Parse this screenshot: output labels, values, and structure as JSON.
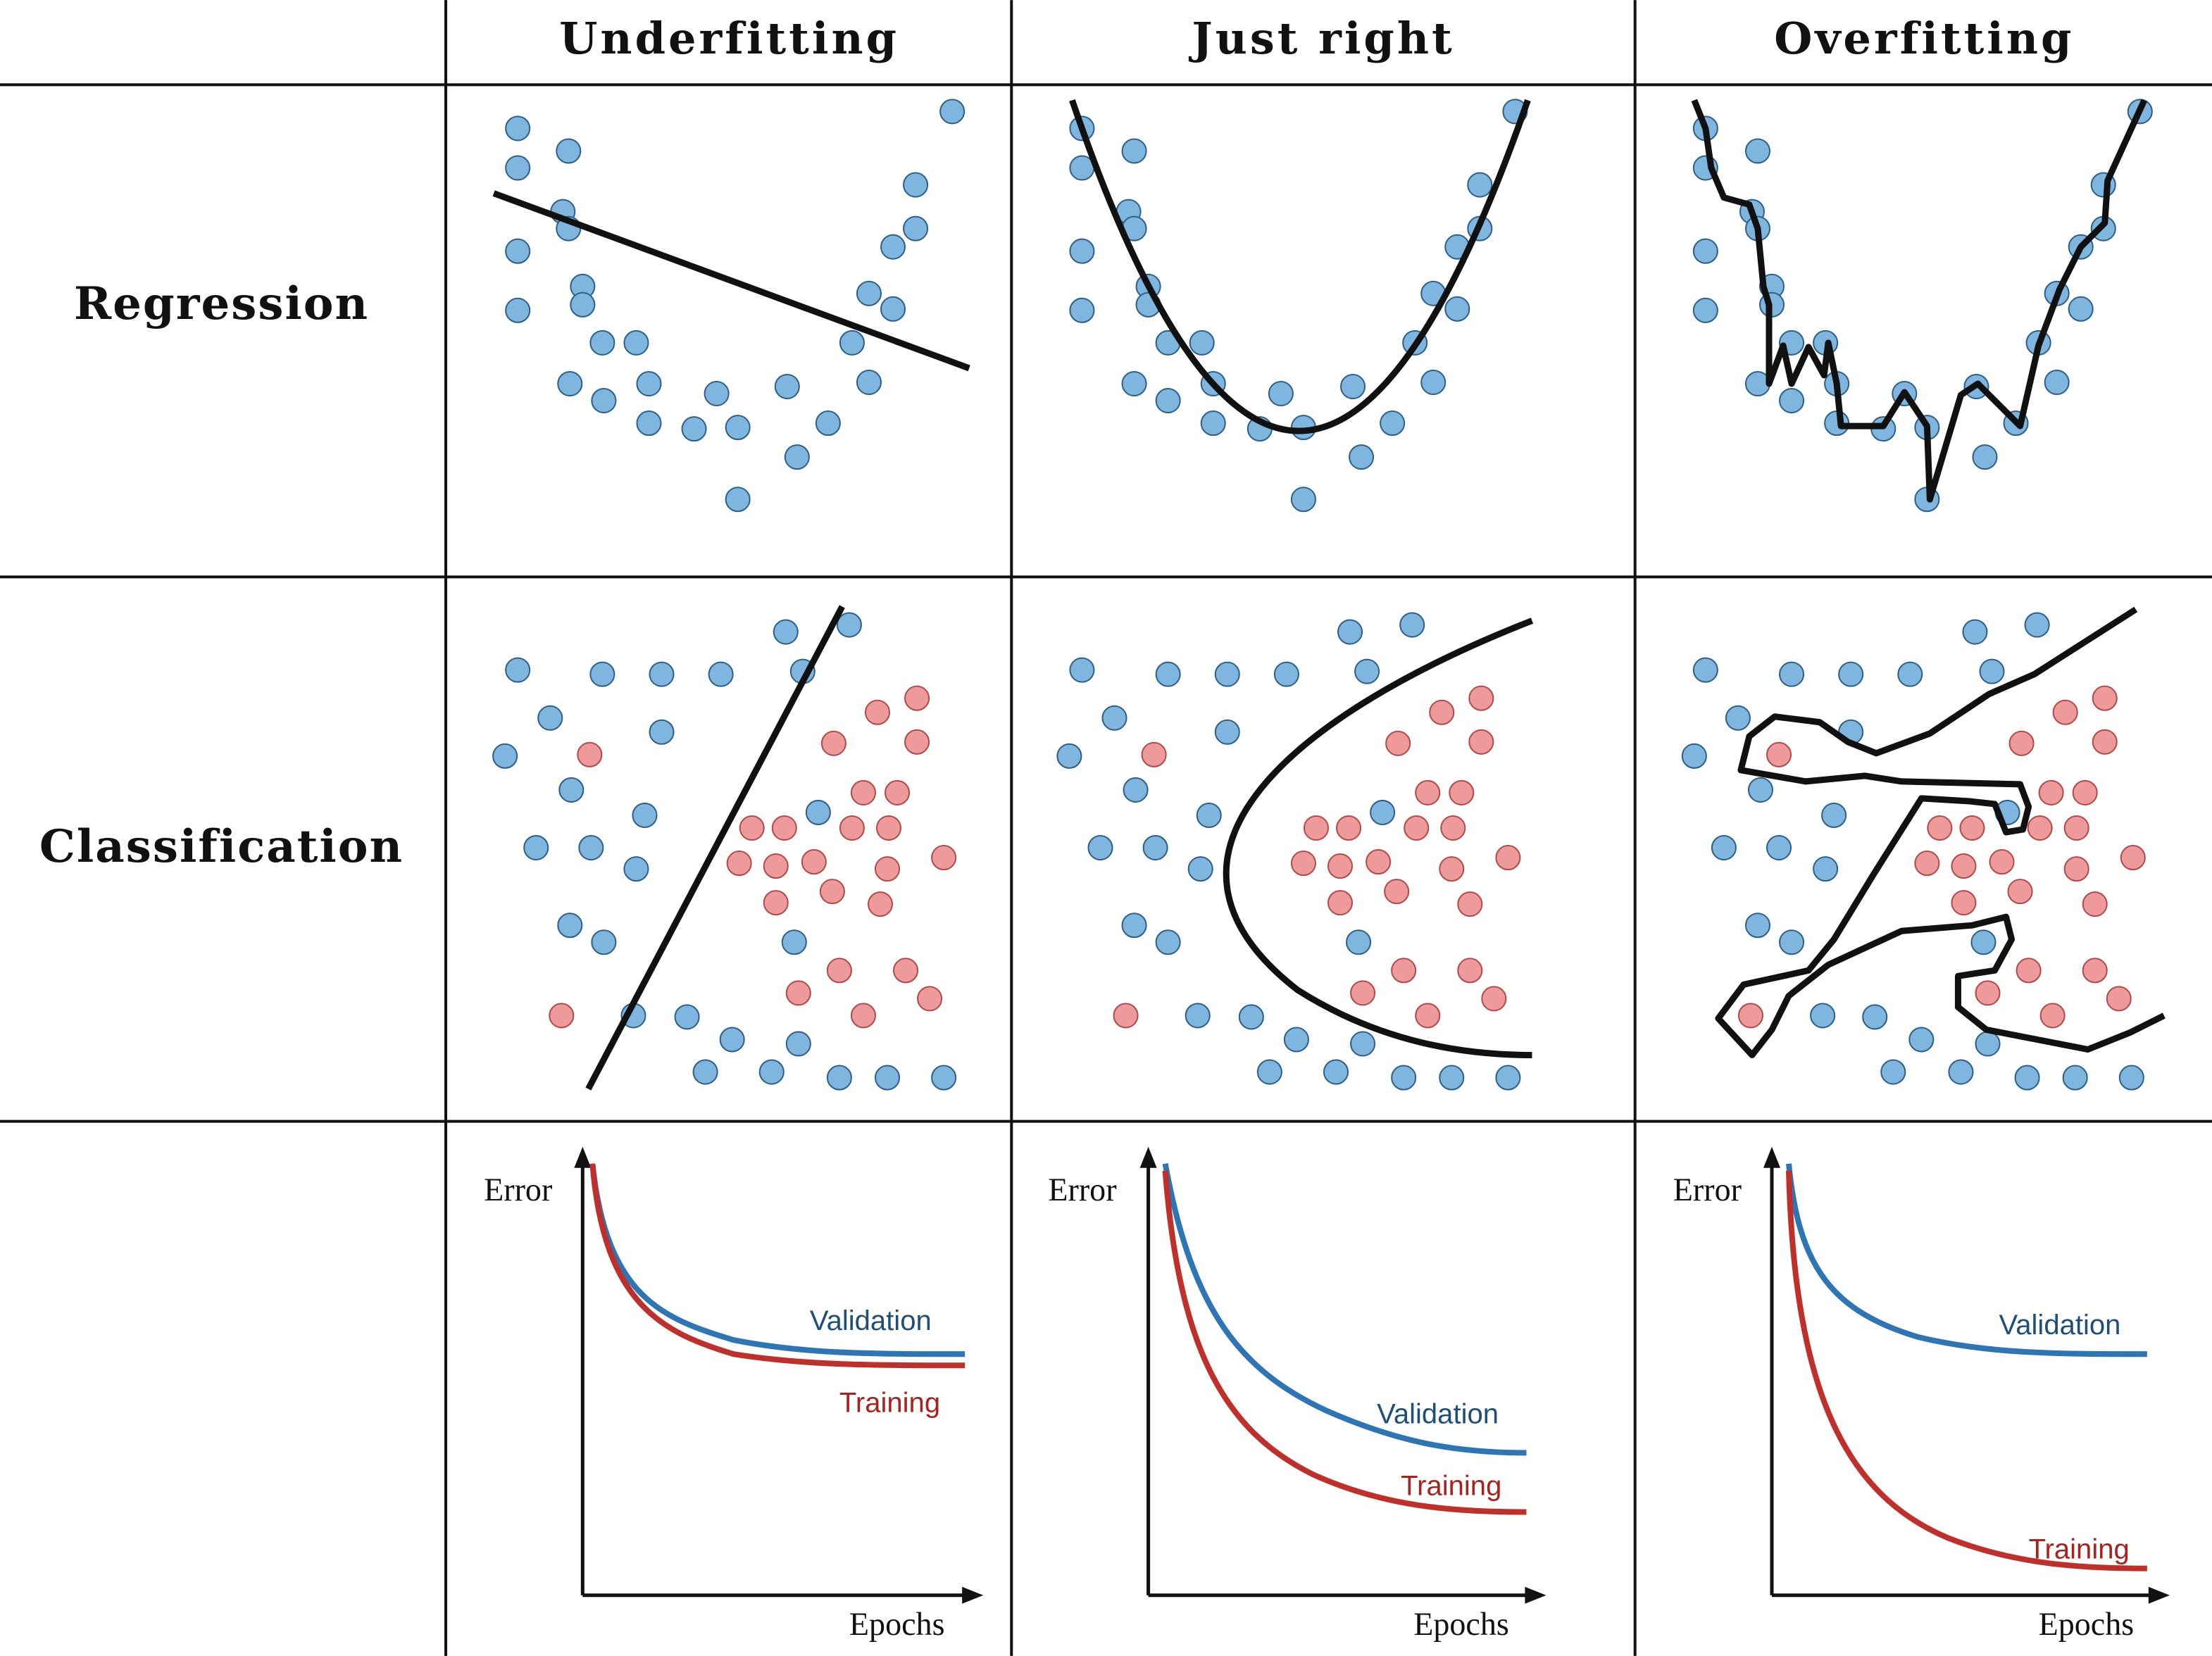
{
  "columns": [
    {
      "title": "Underfitting"
    },
    {
      "title": "Just right"
    },
    {
      "title": "Overfitting"
    }
  ],
  "rows": [
    {
      "title": "Regression"
    },
    {
      "title": "Classification"
    },
    {
      "title": ""
    }
  ],
  "colors": {
    "blue_point": "#7fb6e0",
    "red_point": "#ef9a9a",
    "point_edge": "#2d5f86",
    "validation": "#2e75b6",
    "training": "#c0302b",
    "line": "#111111"
  },
  "error_charts": [
    {
      "panel": "Underfitting",
      "y_axis_label": "Error",
      "x_axis_label": "Epochs",
      "validation_label": "Validation",
      "training_label": "Training"
    },
    {
      "panel": "Just right",
      "y_axis_label": "Error",
      "x_axis_label": "Epochs",
      "validation_label": "Validation",
      "training_label": "Training"
    },
    {
      "panel": "Overfitting",
      "y_axis_label": "Error",
      "x_axis_label": "Epochs",
      "validation_label": "Validation",
      "training_label": "Training"
    }
  ]
}
